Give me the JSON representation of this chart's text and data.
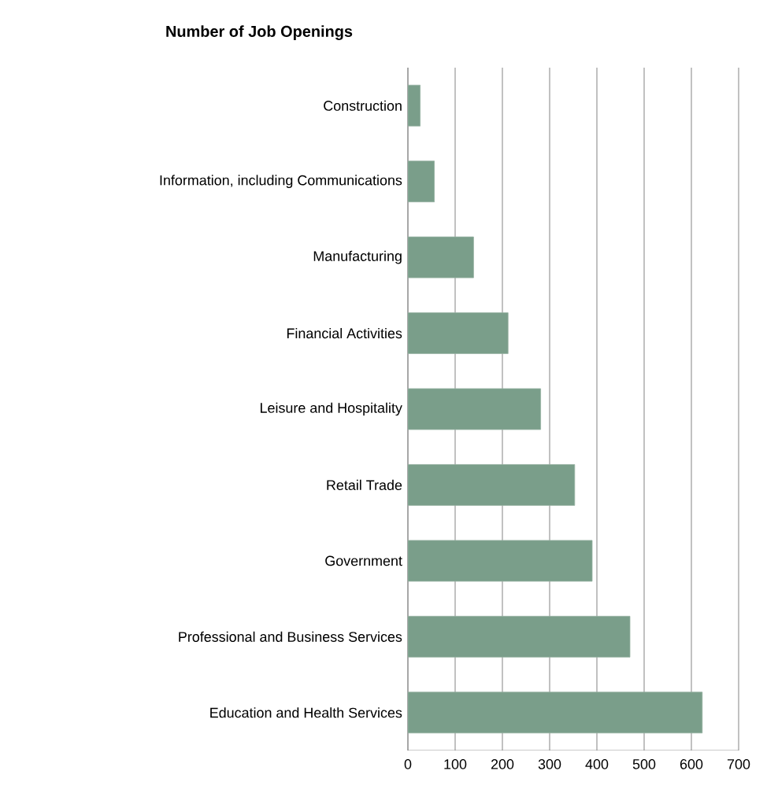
{
  "chart_data": {
    "type": "bar",
    "orientation": "horizontal",
    "title": "Number of Job Openings",
    "categories": [
      "Construction",
      "Information, including Communications",
      "Manufacturing",
      "Financial Activities",
      "Leisure and Hospitality",
      "Retail Trade",
      "Government",
      "Professional and Business Services",
      "Education and Health Services"
    ],
    "values": [
      26,
      56,
      139,
      212,
      281,
      353,
      390,
      470,
      623
    ],
    "color": "#7a9e8a",
    "xlim": [
      0,
      700
    ],
    "xticks": [
      0,
      100,
      200,
      300,
      400,
      500,
      600,
      700
    ],
    "grid": "x"
  }
}
